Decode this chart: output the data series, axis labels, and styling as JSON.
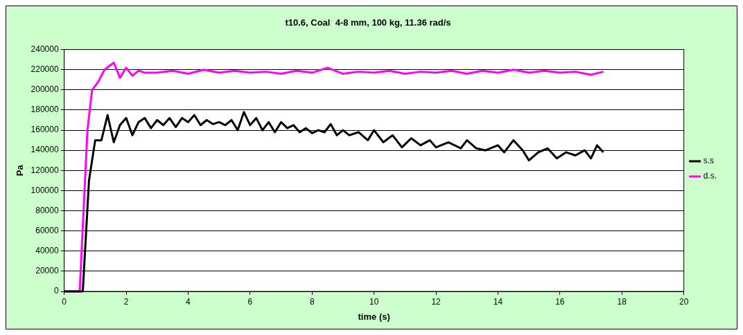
{
  "chart_data": {
    "type": "line",
    "title": "t10.6, Coal  4-8 mm, 100 kg, 11.36 rad/s",
    "xlabel": "time (s)",
    "ylabel": "Pa",
    "xlim": [
      0,
      20
    ],
    "xticks": [
      0,
      2,
      4,
      6,
      8,
      10,
      12,
      14,
      16,
      18,
      20
    ],
    "ylim": [
      0,
      240000
    ],
    "yticks": [
      0,
      20000,
      40000,
      60000,
      80000,
      100000,
      120000,
      140000,
      160000,
      180000,
      200000,
      220000,
      240000
    ],
    "grid": "y",
    "legend": "right",
    "marker": "none",
    "line_style": "solid",
    "series": [
      {
        "name": "s.s",
        "color": "#000000",
        "x": [
          0,
          0.6,
          0.8,
          1.0,
          1.2,
          1.4,
          1.6,
          1.8,
          2.0,
          2.2,
          2.4,
          2.6,
          2.8,
          3.0,
          3.2,
          3.4,
          3.6,
          3.8,
          4.0,
          4.2,
          4.4,
          4.6,
          4.8,
          5.0,
          5.2,
          5.4,
          5.6,
          5.8,
          6.0,
          6.2,
          6.4,
          6.6,
          6.8,
          7.0,
          7.2,
          7.4,
          7.6,
          7.8,
          8.0,
          8.2,
          8.4,
          8.6,
          8.8,
          9.0,
          9.2,
          9.5,
          9.8,
          10.0,
          10.3,
          10.6,
          10.9,
          11.2,
          11.5,
          11.8,
          12.0,
          12.4,
          12.8,
          13.0,
          13.3,
          13.6,
          14.0,
          14.2,
          14.5,
          14.8,
          15.0,
          15.3,
          15.6,
          15.9,
          16.2,
          16.5,
          16.8,
          17.0,
          17.2,
          17.4
        ],
        "values": [
          0,
          0,
          110000,
          150000,
          150000,
          175000,
          148000,
          165000,
          172000,
          155000,
          168000,
          172000,
          162000,
          170000,
          165000,
          172000,
          163000,
          172000,
          168000,
          175000,
          165000,
          170000,
          166000,
          168000,
          165000,
          170000,
          160000,
          178000,
          165000,
          172000,
          160000,
          168000,
          158000,
          168000,
          162000,
          165000,
          158000,
          162000,
          157000,
          160000,
          158000,
          166000,
          155000,
          160000,
          155000,
          158000,
          150000,
          160000,
          148000,
          155000,
          143000,
          152000,
          145000,
          150000,
          143000,
          148000,
          142000,
          150000,
          142000,
          140000,
          145000,
          138000,
          150000,
          140000,
          130000,
          138000,
          142000,
          132000,
          138000,
          135000,
          140000,
          132000,
          145000,
          138000
        ]
      },
      {
        "name": "d.s.",
        "color": "#ff00ff",
        "x": [
          0,
          0.5,
          0.75,
          0.9,
          1.1,
          1.3,
          1.6,
          1.8,
          2.0,
          2.2,
          2.4,
          2.6,
          3.0,
          3.5,
          4.0,
          4.5,
          5,
          5.5,
          6,
          6.5,
          7,
          7.5,
          8,
          8.5,
          9,
          9.5,
          10,
          10.5,
          11,
          11.5,
          12,
          12.5,
          13,
          13.5,
          14,
          14.5,
          15,
          15.5,
          16,
          16.5,
          17,
          17.4
        ],
        "values": [
          0,
          0,
          160000,
          200000,
          208000,
          220000,
          227000,
          212000,
          222000,
          214000,
          219000,
          217000,
          217000,
          219000,
          216000,
          220000,
          217000,
          219000,
          217000,
          218000,
          216000,
          219000,
          217000,
          222000,
          216000,
          218000,
          217000,
          219000,
          216000,
          218000,
          217000,
          219000,
          216000,
          219000,
          217000,
          220000,
          217000,
          219000,
          217000,
          218000,
          215000,
          218000
        ]
      }
    ]
  }
}
